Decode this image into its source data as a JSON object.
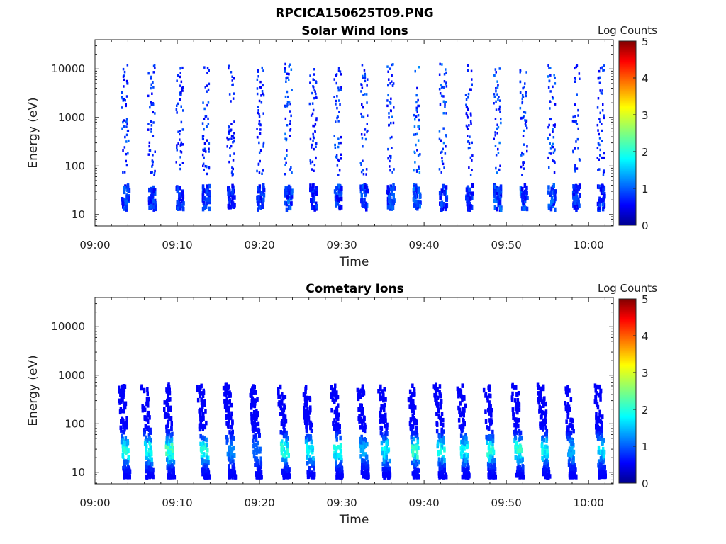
{
  "figure_title": "RPCICA150625T09.PNG",
  "chart_data": [
    {
      "type": "heatmap",
      "title": "Solar Wind Ions",
      "xlabel": "Time",
      "ylabel": "Energy (eV)",
      "x_ticks": [
        "09:00",
        "09:10",
        "09:20",
        "09:30",
        "09:40",
        "09:50",
        "10:00"
      ],
      "x_range_minutes": [
        0,
        63
      ],
      "y_scale": "log",
      "y_ticks": [
        "10",
        "100",
        "1000",
        "10000"
      ],
      "y_range": [
        5.8,
        40000
      ],
      "colorbar": {
        "label": "Log Counts",
        "ticks": [
          "0",
          "1",
          "2",
          "3",
          "4",
          "5"
        ],
        "range": [
          0,
          5
        ],
        "colormap": "jet"
      },
      "bursts": [
        {
          "t": 3.6,
          "level": 0.6
        },
        {
          "t": 6.8,
          "level": 0.5
        },
        {
          "t": 10.2,
          "level": 0.5
        },
        {
          "t": 13.4,
          "level": 0.6
        },
        {
          "t": 16.4,
          "level": 0.4
        },
        {
          "t": 20.0,
          "level": 0.5
        },
        {
          "t": 23.4,
          "level": 0.7
        },
        {
          "t": 26.4,
          "level": 0.4
        },
        {
          "t": 29.4,
          "level": 0.6
        },
        {
          "t": 32.6,
          "level": 0.6
        },
        {
          "t": 35.8,
          "level": 0.6
        },
        {
          "t": 39.0,
          "level": 0.8
        },
        {
          "t": 42.2,
          "level": 0.7
        },
        {
          "t": 45.4,
          "level": 0.5
        },
        {
          "t": 48.8,
          "level": 0.7
        },
        {
          "t": 52.0,
          "level": 0.6
        },
        {
          "t": 55.4,
          "level": 0.7
        },
        {
          "t": 58.4,
          "level": 0.5
        },
        {
          "t": 61.4,
          "level": 0.5
        }
      ]
    },
    {
      "type": "heatmap",
      "title": "Cometary Ions",
      "xlabel": "Time",
      "ylabel": "Energy (eV)",
      "x_ticks": [
        "09:00",
        "09:10",
        "09:20",
        "09:30",
        "09:40",
        "09:50",
        "10:00"
      ],
      "x_range_minutes": [
        0,
        63
      ],
      "y_scale": "log",
      "y_ticks": [
        "10",
        "100",
        "1000",
        "10000"
      ],
      "y_range": [
        5.8,
        40000
      ],
      "colorbar": {
        "label": "Log Counts",
        "ticks": [
          "0",
          "1",
          "2",
          "3",
          "4",
          "5"
        ],
        "range": [
          0,
          5
        ],
        "colormap": "jet"
      },
      "bursts": [
        {
          "t": 3.6,
          "level": 1.8
        },
        {
          "t": 6.4,
          "level": 1.8
        },
        {
          "t": 9.0,
          "level": 2.0
        },
        {
          "t": 13.2,
          "level": 1.8
        },
        {
          "t": 16.4,
          "level": 1.0
        },
        {
          "t": 19.6,
          "level": 0.8
        },
        {
          "t": 23.0,
          "level": 1.8
        },
        {
          "t": 26.0,
          "level": 1.6
        },
        {
          "t": 29.4,
          "level": 1.7
        },
        {
          "t": 32.6,
          "level": 1.2
        },
        {
          "t": 35.2,
          "level": 1.6
        },
        {
          "t": 38.8,
          "level": 1.9
        },
        {
          "t": 42.0,
          "level": 1.7
        },
        {
          "t": 44.8,
          "level": 1.6
        },
        {
          "t": 48.0,
          "level": 1.8
        },
        {
          "t": 51.4,
          "level": 1.9
        },
        {
          "t": 54.6,
          "level": 1.7
        },
        {
          "t": 57.8,
          "level": 1.2
        },
        {
          "t": 61.4,
          "level": 1.5
        }
      ]
    }
  ]
}
